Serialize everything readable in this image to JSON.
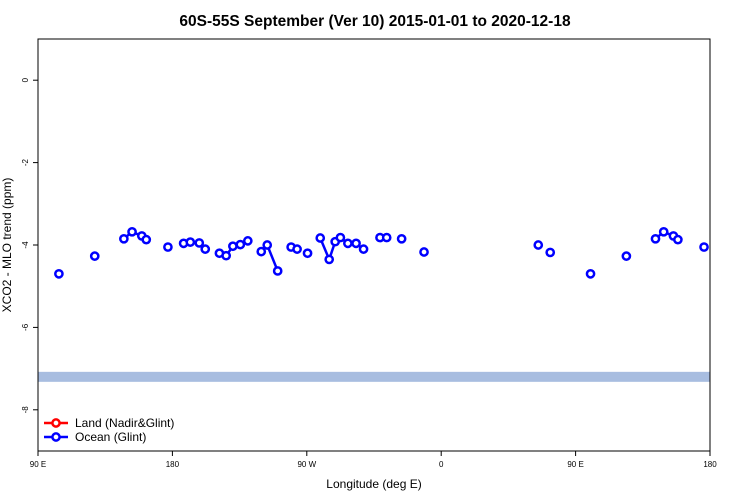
{
  "chart_data": {
    "type": "line",
    "title": "60S-55S September (Ver 10)   2015-01-01 to 2020-12-18",
    "xlabel": "Longitude (deg E)",
    "ylabel": "XCO2 - MLO trend (ppm)",
    "xlim": [
      90,
      540
    ],
    "ylim": [
      -9,
      1
    ],
    "xticks": [
      {
        "value": 90,
        "label": "90 E"
      },
      {
        "value": 180,
        "label": "180"
      },
      {
        "value": 270,
        "label": "90 W"
      },
      {
        "value": 360,
        "label": "0"
      },
      {
        "value": 450,
        "label": "90 E"
      },
      {
        "value": 540,
        "label": "180"
      }
    ],
    "yticks": [
      {
        "value": 0,
        "label": "0"
      },
      {
        "value": -2,
        "label": "-2"
      },
      {
        "value": -4,
        "label": "-4"
      },
      {
        "value": -6,
        "label": "-6"
      },
      {
        "value": -8,
        "label": "-8"
      }
    ],
    "grid": false,
    "legend_position": "bottom-left",
    "band": {
      "y_center": -7.2,
      "color": "#a8bde0"
    },
    "series": [
      {
        "name": "Land (Nadir&Glint)",
        "color": "#ff0000",
        "segments": []
      },
      {
        "name": "Ocean (Glint)",
        "color": "#0000ff",
        "segments": [
          [
            [
              104,
              -4.7
            ]
          ],
          [
            [
              128,
              -4.27
            ]
          ],
          [
            [
              147.5,
              -3.85
            ],
            [
              153,
              -3.68
            ],
            [
              159.5,
              -3.78
            ],
            [
              162.5,
              -3.87
            ]
          ],
          [
            [
              177,
              -4.05
            ]
          ],
          [
            [
              187.5,
              -3.96
            ],
            [
              192,
              -3.93
            ],
            [
              198,
              -3.95
            ],
            [
              202,
              -4.1
            ]
          ],
          [
            [
              211.5,
              -4.2
            ],
            [
              216,
              -4.26
            ],
            [
              220.5,
              -4.03
            ],
            [
              225.5,
              -3.99
            ],
            [
              230.5,
              -3.9
            ]
          ],
          [
            [
              239.5,
              -4.16
            ],
            [
              243.5,
              -4.0
            ],
            [
              250.5,
              -4.63
            ]
          ],
          [
            [
              259.5,
              -4.05
            ],
            [
              263.5,
              -4.1
            ]
          ],
          [
            [
              270.5,
              -4.2
            ]
          ],
          [
            [
              279,
              -3.83
            ],
            [
              285,
              -4.35
            ],
            [
              289,
              -3.92
            ],
            [
              292.5,
              -3.82
            ],
            [
              297.5,
              -3.96
            ],
            [
              303,
              -3.96
            ],
            [
              308,
              -4.1
            ]
          ],
          [
            [
              319,
              -3.82
            ],
            [
              323.5,
              -3.82
            ]
          ],
          [
            [
              333.5,
              -3.85
            ]
          ],
          [
            [
              348.5,
              -4.17
            ]
          ],
          [
            [
              425,
              -4.0
            ]
          ],
          [
            [
              433,
              -4.18
            ]
          ],
          [
            [
              460,
              -4.7
            ]
          ],
          [
            [
              484,
              -4.27
            ]
          ],
          [
            [
              503.5,
              -3.85
            ],
            [
              509,
              -3.68
            ],
            [
              515.5,
              -3.78
            ],
            [
              518.5,
              -3.87
            ]
          ],
          [
            [
              536,
              -4.05
            ]
          ]
        ]
      }
    ]
  }
}
